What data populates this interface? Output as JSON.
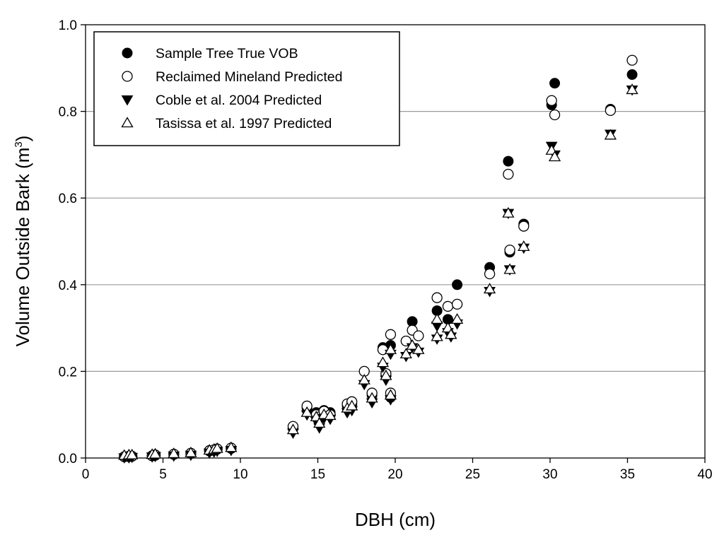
{
  "chart_data": {
    "type": "scatter",
    "title": "",
    "xlabel": "DBH (cm)",
    "ylabel": {
      "main": "Volume Outside Bark (m",
      "sup": "3",
      "end": ")"
    },
    "xlim": [
      0,
      40
    ],
    "ylim": [
      0,
      1.0
    ],
    "x_ticks": [
      0,
      5,
      10,
      15,
      20,
      25,
      30,
      35,
      40
    ],
    "x_tick_labels": [
      "0",
      "5",
      "10",
      "15",
      "20",
      "25",
      "30",
      "35",
      "40"
    ],
    "y_ticks": [
      0,
      0.2,
      0.4,
      0.6,
      0.8,
      1.0
    ],
    "y_tick_labels": [
      "0.0",
      "0.2",
      "0.4",
      "0.6",
      "0.8",
      "1.0"
    ],
    "gridlines": "horizontal",
    "legend_position": "top-left",
    "series": [
      {
        "name": "Sample Tree True VOB",
        "marker": "filled-circle",
        "points": [
          [
            2.5,
            0.003
          ],
          [
            2.8,
            0.003
          ],
          [
            3.0,
            0.004
          ],
          [
            4.3,
            0.005
          ],
          [
            4.5,
            0.006
          ],
          [
            5.7,
            0.008
          ],
          [
            6.8,
            0.01
          ],
          [
            8.0,
            0.016
          ],
          [
            8.3,
            0.018
          ],
          [
            8.5,
            0.02
          ],
          [
            9.4,
            0.022
          ],
          [
            13.4,
            0.07
          ],
          [
            14.3,
            0.115
          ],
          [
            14.9,
            0.105
          ],
          [
            15.1,
            0.09
          ],
          [
            15.4,
            0.11
          ],
          [
            15.8,
            0.105
          ],
          [
            16.9,
            0.12
          ],
          [
            17.2,
            0.125
          ],
          [
            18.0,
            0.2
          ],
          [
            18.5,
            0.145
          ],
          [
            19.2,
            0.255
          ],
          [
            19.4,
            0.19
          ],
          [
            19.7,
            0.26
          ],
          [
            19.7,
            0.14
          ],
          [
            20.7,
            0.27
          ],
          [
            21.1,
            0.315
          ],
          [
            22.7,
            0.34
          ],
          [
            23.4,
            0.32
          ],
          [
            24.0,
            0.4
          ],
          [
            26.1,
            0.44
          ],
          [
            27.3,
            0.685
          ],
          [
            27.4,
            0.475
          ],
          [
            28.3,
            0.54
          ],
          [
            30.1,
            0.815
          ],
          [
            30.3,
            0.865
          ],
          [
            33.9,
            0.805
          ],
          [
            35.3,
            0.885
          ]
        ]
      },
      {
        "name": "Reclaimed Mineland Predicted",
        "marker": "open-circle",
        "points": [
          [
            2.5,
            0.003
          ],
          [
            2.8,
            0.004
          ],
          [
            3.0,
            0.004
          ],
          [
            4.3,
            0.005
          ],
          [
            4.5,
            0.007
          ],
          [
            5.7,
            0.009
          ],
          [
            6.8,
            0.011
          ],
          [
            8.0,
            0.017
          ],
          [
            8.3,
            0.019
          ],
          [
            8.5,
            0.021
          ],
          [
            9.4,
            0.023
          ],
          [
            13.4,
            0.073
          ],
          [
            14.3,
            0.12
          ],
          [
            14.9,
            0.1
          ],
          [
            15.1,
            0.095
          ],
          [
            15.4,
            0.108
          ],
          [
            15.8,
            0.1
          ],
          [
            16.9,
            0.125
          ],
          [
            17.2,
            0.13
          ],
          [
            18.0,
            0.2
          ],
          [
            18.5,
            0.15
          ],
          [
            19.2,
            0.25
          ],
          [
            19.4,
            0.195
          ],
          [
            19.7,
            0.285
          ],
          [
            19.7,
            0.15
          ],
          [
            20.7,
            0.27
          ],
          [
            21.1,
            0.295
          ],
          [
            22.7,
            0.37
          ],
          [
            23.4,
            0.35
          ],
          [
            24.0,
            0.355
          ],
          [
            26.1,
            0.425
          ],
          [
            27.3,
            0.655
          ],
          [
            27.4,
            0.48
          ],
          [
            28.3,
            0.535
          ],
          [
            30.1,
            0.825
          ],
          [
            30.3,
            0.792
          ],
          [
            33.9,
            0.802
          ],
          [
            35.3,
            0.918
          ],
          [
            21.5,
            0.282
          ]
        ]
      },
      {
        "name": "Coble et al. 2004 Predicted",
        "marker": "filled-triangle-down",
        "points": [
          [
            2.5,
            0.001
          ],
          [
            2.8,
            0.001
          ],
          [
            3.0,
            0.002
          ],
          [
            4.3,
            0.003
          ],
          [
            4.5,
            0.004
          ],
          [
            5.7,
            0.005
          ],
          [
            6.8,
            0.007
          ],
          [
            8.0,
            0.012
          ],
          [
            8.3,
            0.014
          ],
          [
            8.5,
            0.016
          ],
          [
            9.4,
            0.018
          ],
          [
            13.4,
            0.058
          ],
          [
            14.3,
            0.1
          ],
          [
            14.9,
            0.085
          ],
          [
            15.1,
            0.07
          ],
          [
            15.4,
            0.092
          ],
          [
            15.8,
            0.09
          ],
          [
            16.9,
            0.105
          ],
          [
            17.2,
            0.11
          ],
          [
            18.0,
            0.17
          ],
          [
            18.5,
            0.128
          ],
          [
            19.2,
            0.21
          ],
          [
            19.4,
            0.18
          ],
          [
            19.7,
            0.24
          ],
          [
            19.7,
            0.135
          ],
          [
            20.7,
            0.235
          ],
          [
            21.1,
            0.255
          ],
          [
            21.5,
            0.245
          ],
          [
            22.7,
            0.275
          ],
          [
            22.7,
            0.305
          ],
          [
            23.4,
            0.29
          ],
          [
            23.6,
            0.28
          ],
          [
            24.0,
            0.31
          ],
          [
            26.1,
            0.385
          ],
          [
            27.3,
            0.565
          ],
          [
            27.4,
            0.435
          ],
          [
            28.3,
            0.485
          ],
          [
            30.1,
            0.72
          ],
          [
            30.3,
            0.7
          ],
          [
            33.9,
            0.748
          ],
          [
            35.3,
            0.85
          ]
        ]
      },
      {
        "name": "Tasissa et al. 1997 Predicted",
        "marker": "open-triangle-up",
        "points": [
          [
            2.5,
            0.006
          ],
          [
            2.8,
            0.007
          ],
          [
            3.0,
            0.007
          ],
          [
            4.3,
            0.008
          ],
          [
            4.5,
            0.009
          ],
          [
            5.7,
            0.01
          ],
          [
            6.8,
            0.012
          ],
          [
            8.0,
            0.018
          ],
          [
            8.3,
            0.02
          ],
          [
            8.5,
            0.022
          ],
          [
            9.4,
            0.024
          ],
          [
            13.4,
            0.065
          ],
          [
            14.3,
            0.105
          ],
          [
            14.9,
            0.095
          ],
          [
            15.1,
            0.08
          ],
          [
            15.4,
            0.1
          ],
          [
            15.8,
            0.098
          ],
          [
            16.9,
            0.115
          ],
          [
            17.2,
            0.12
          ],
          [
            18.0,
            0.18
          ],
          [
            18.5,
            0.138
          ],
          [
            19.2,
            0.22
          ],
          [
            19.4,
            0.19
          ],
          [
            19.7,
            0.25
          ],
          [
            19.7,
            0.145
          ],
          [
            20.7,
            0.24
          ],
          [
            21.1,
            0.26
          ],
          [
            21.5,
            0.25
          ],
          [
            22.7,
            0.28
          ],
          [
            22.7,
            0.32
          ],
          [
            23.4,
            0.3
          ],
          [
            23.6,
            0.285
          ],
          [
            24.0,
            0.32
          ],
          [
            26.1,
            0.39
          ],
          [
            27.3,
            0.565
          ],
          [
            27.4,
            0.435
          ],
          [
            28.3,
            0.488
          ],
          [
            30.1,
            0.71
          ],
          [
            30.3,
            0.695
          ],
          [
            33.9,
            0.745
          ],
          [
            35.3,
            0.85
          ]
        ]
      }
    ]
  }
}
